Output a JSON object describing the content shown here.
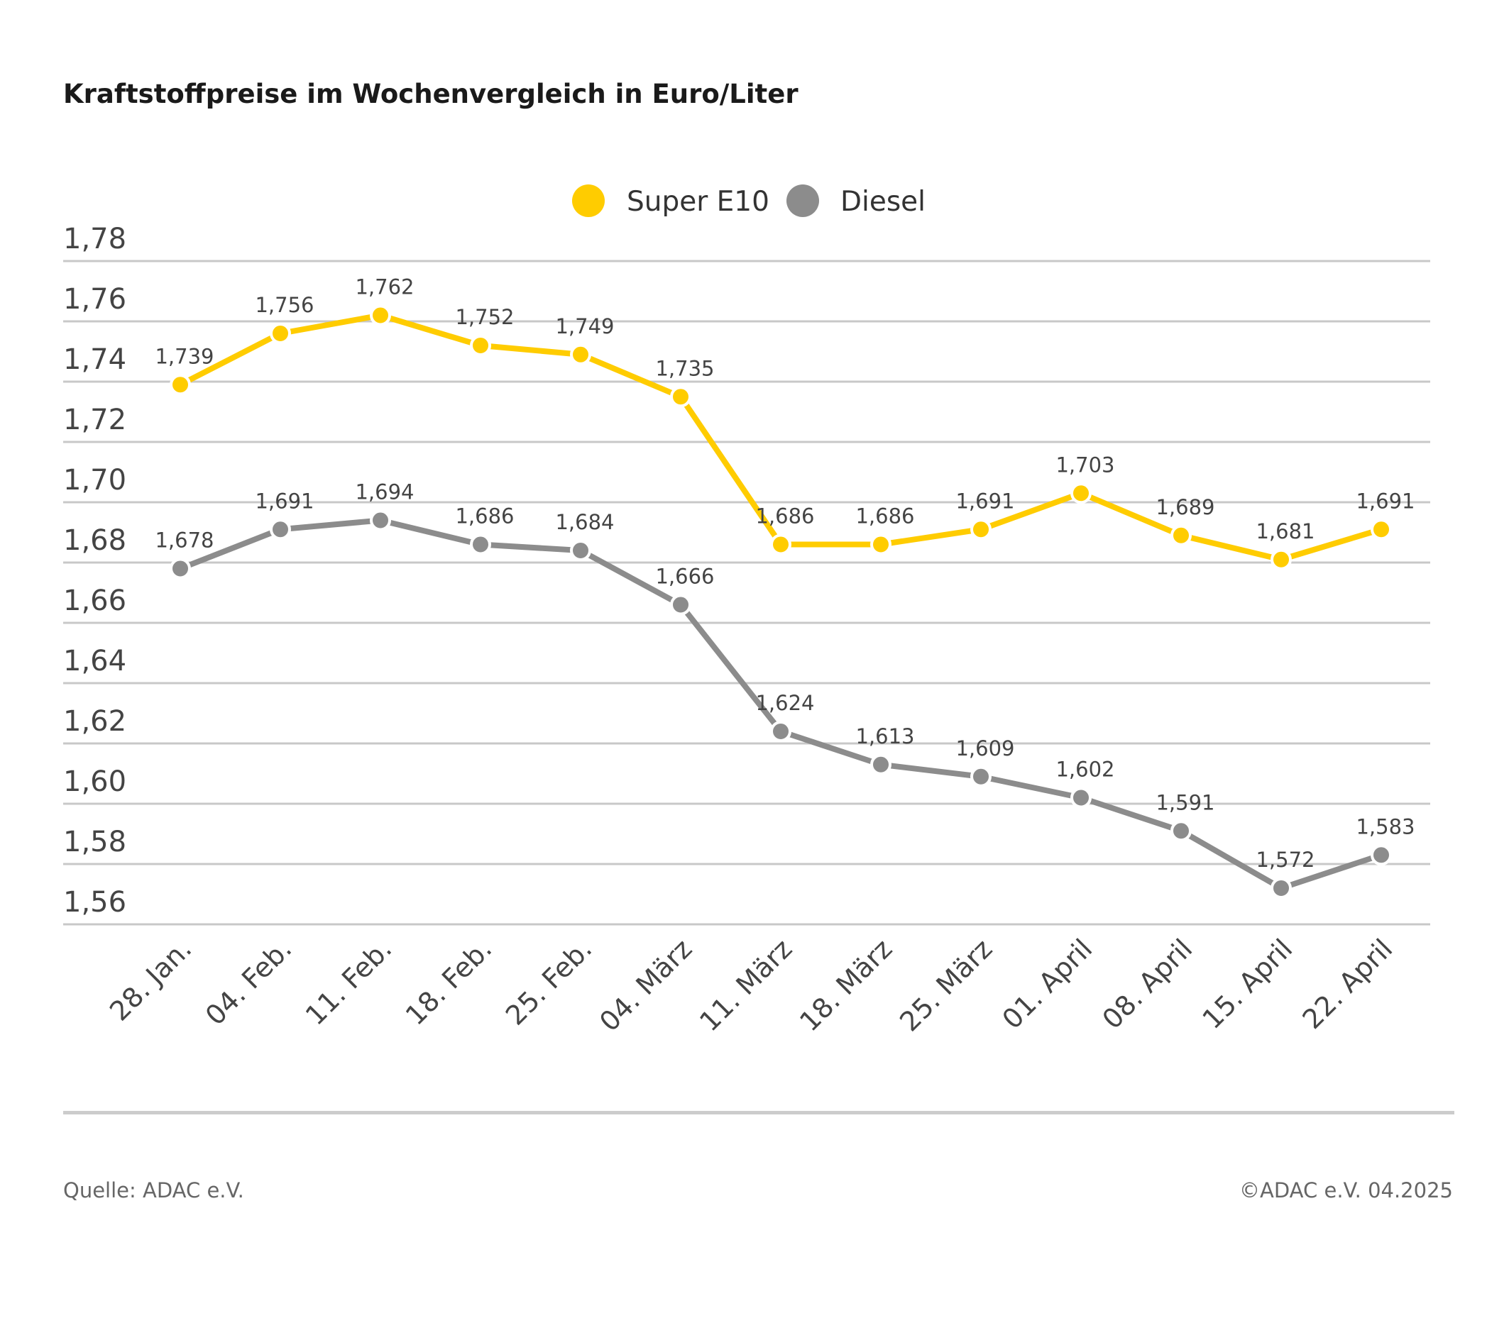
{
  "chart_data": {
    "type": "line",
    "title": "Kraftstoffpreise im Wochenvergleich in Euro/Liter",
    "xlabel": "",
    "ylabel": "",
    "categories": [
      "28. Jan.",
      "04. Feb.",
      "11. Feb.",
      "18. Feb.",
      "25. Feb.",
      "04. März",
      "11. März",
      "18. März",
      "25. März",
      "01. April",
      "08. April",
      "15. April",
      "22. April"
    ],
    "ylim": [
      1.56,
      1.78
    ],
    "yticks": [
      "1,56",
      "1,58",
      "1,60",
      "1,62",
      "1,64",
      "1,66",
      "1,68",
      "1,70",
      "1,72",
      "1,74",
      "1,76",
      "1,78"
    ],
    "grid": true,
    "legend_position": "top-center",
    "series": [
      {
        "name": "Super E10",
        "color": "#FFCC00",
        "values": [
          1.739,
          1.756,
          1.762,
          1.752,
          1.749,
          1.735,
          1.686,
          1.686,
          1.691,
          1.703,
          1.689,
          1.681,
          1.691
        ],
        "labels": [
          "1,739",
          "1,756",
          "1,762",
          "1,752",
          "1,749",
          "1,735",
          "1,686",
          "1,686",
          "1,691",
          "1,703",
          "1,689",
          "1,681",
          "1,691"
        ]
      },
      {
        "name": "Diesel",
        "color": "#8C8C8C",
        "values": [
          1.678,
          1.691,
          1.694,
          1.686,
          1.684,
          1.666,
          1.624,
          1.613,
          1.609,
          1.602,
          1.591,
          1.572,
          1.583
        ],
        "labels": [
          "1,678",
          "1,691",
          "1,694",
          "1,686",
          "1,684",
          "1,666",
          "1,624",
          "1,613",
          "1,609",
          "1,602",
          "1,591",
          "1,572",
          "1,583"
        ]
      }
    ]
  },
  "footer": {
    "source": "Quelle: ADAC e.V.",
    "copyright": "©ADAC e.V. 04.2025"
  }
}
